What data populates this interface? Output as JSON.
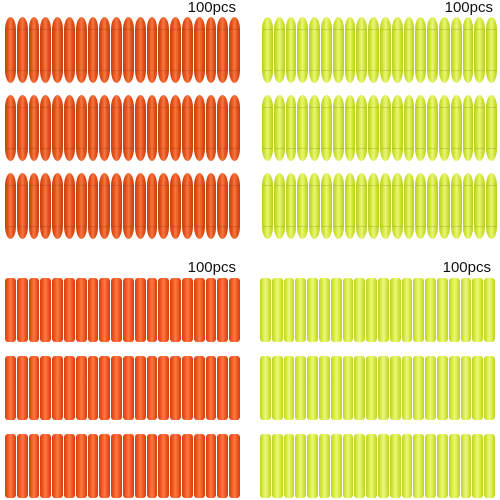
{
  "panels": [
    {
      "id": "tl",
      "label": "100pcs",
      "style": "tip",
      "color": "#e8541c",
      "dark": "#c23e0e",
      "highlight": "#f47a44",
      "rows": 3,
      "per_row": 20
    },
    {
      "id": "tr",
      "label": "100pcs",
      "style": "tip",
      "color": "#d4e83a",
      "dark": "#b6cc20",
      "highlight": "#e9f57a",
      "rows": 3,
      "per_row": 20
    },
    {
      "id": "bl",
      "label": "100pcs",
      "style": "flat",
      "color": "#f05520",
      "dark": "#d0400f",
      "highlight": "#ff7a45",
      "rows": 3,
      "per_row": 20
    },
    {
      "id": "br",
      "label": "100pcs",
      "style": "flat",
      "color": "#d6ea3e",
      "dark": "#bcd02a",
      "highlight": "#ecf77e",
      "rows": 3,
      "per_row": 20
    }
  ]
}
